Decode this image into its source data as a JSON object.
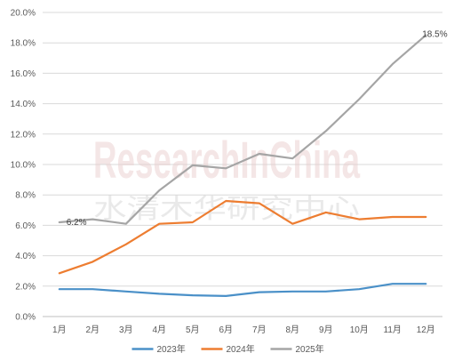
{
  "chart_data": {
    "type": "line",
    "categories": [
      "1月",
      "2月",
      "3月",
      "4月",
      "5月",
      "6月",
      "7月",
      "8月",
      "9月",
      "10月",
      "11月",
      "12月"
    ],
    "series": [
      {
        "name": "2023年",
        "color": "#4A90C8",
        "values": [
          1.8,
          1.8,
          1.65,
          1.5,
          1.4,
          1.35,
          1.6,
          1.65,
          1.65,
          1.8,
          2.15,
          2.15
        ]
      },
      {
        "name": "2024年",
        "color": "#ED7D31",
        "values": [
          2.85,
          3.6,
          4.75,
          6.1,
          6.2,
          7.6,
          7.45,
          6.1,
          6.85,
          6.4,
          6.55,
          6.55
        ]
      },
      {
        "name": "2025年",
        "color": "#A5A5A5",
        "values": [
          6.2,
          6.4,
          6.1,
          8.3,
          9.95,
          9.75,
          10.7,
          10.4,
          12.2,
          14.3,
          16.6,
          18.5
        ]
      }
    ],
    "yticks": [
      "0.0%",
      "2.0%",
      "4.0%",
      "6.0%",
      "8.0%",
      "10.0%",
      "12.0%",
      "14.0%",
      "16.0%",
      "18.0%",
      "20.0%"
    ],
    "ylim": [
      0,
      20
    ],
    "grid": true,
    "legend_position": "bottom",
    "annotations": [
      {
        "series": "2025年",
        "category": "1月",
        "text": "6.2%"
      },
      {
        "series": "2025年",
        "category": "12月",
        "text": "18.5%"
      }
    ]
  },
  "watermark": {
    "latin": "ResearchInChina",
    "chinese": "水清木华研究中心"
  }
}
